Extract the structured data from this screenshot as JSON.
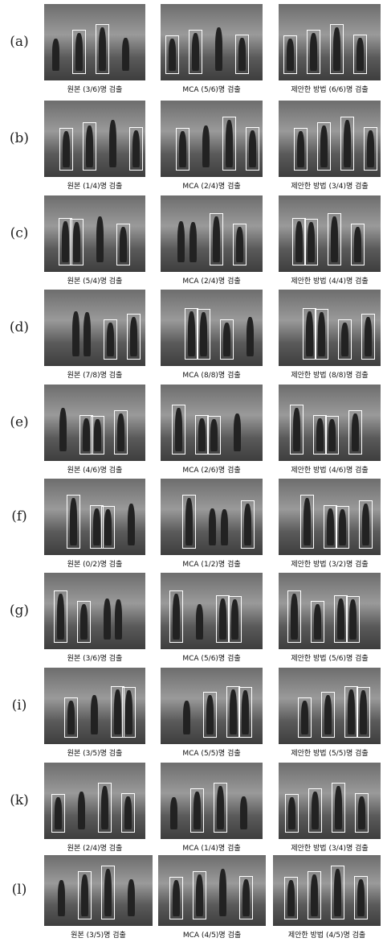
{
  "rows": [
    {
      "label": "(a)",
      "captions": [
        "원본 (3/6)명 검출",
        "MCA (5/6)명 검출",
        "제안한 방법 (6/6)명 검출"
      ]
    },
    {
      "label": "(b)",
      "captions": [
        "원본 (1/4)명 검출",
        "MCA (2/4)명 검출",
        "제안한 방법 (3/4)명 검출"
      ]
    },
    {
      "label": "(c)",
      "captions": [
        "원본 (5/4)명 검출",
        "MCA (2/4)명 검출",
        "제안한 방법 (4/4)명 검출"
      ]
    },
    {
      "label": "(d)",
      "captions": [
        "원본 (7/8)명 검출",
        "MCA (8/8)명 검출",
        "제안한 방법 (8/8)명 검출"
      ]
    },
    {
      "label": "(e)",
      "captions": [
        "원본 (4/6)명 검출",
        "MCA (2/6)명 검출",
        "제안한 방법 (4/6)명 검출"
      ]
    },
    {
      "label": "(f)",
      "captions": [
        "원본 (0/2)명 검출",
        "MCA (1/2)명 검출",
        "제안한 방법 (3/2)명 검출"
      ]
    },
    {
      "label": "(g)",
      "captions": [
        "원본 (3/6)명 검출",
        "MCA (5/6)명 검출",
        "제안한 방법 (5/6)명 검출"
      ]
    },
    {
      "label": "(i)",
      "captions": [
        "원본 (3/5)명 검출",
        "MCA (5/5)명 검출",
        "제안한 방법 (5/5)명 검출"
      ]
    },
    {
      "label": "(k)",
      "captions": [
        "원본 (2/4)명 검출",
        "MCA (1/4)명 검출",
        "제안한 방법 (3/4)명 검출"
      ]
    },
    {
      "label": "(l)",
      "captions": [
        "원본 (3/5)명 검출",
        "MCA (4/5)명 검출",
        "제안한 방법 (4/5)명 검출"
      ]
    }
  ]
}
